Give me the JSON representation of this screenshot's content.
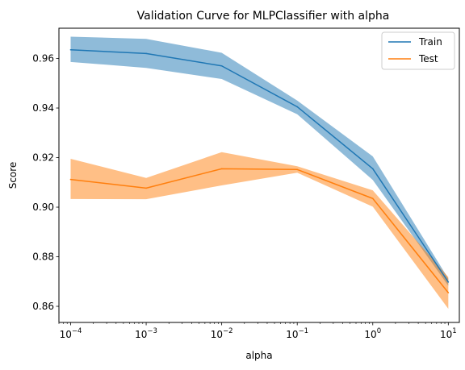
{
  "chart_data": {
    "type": "line",
    "title": "Validation Curve for MLPClassifier with alpha",
    "xlabel": "alpha",
    "ylabel": "Score",
    "xscale": "log",
    "xlim": [
      7e-05,
      14
    ],
    "ylim": [
      0.8535,
      0.9722
    ],
    "x": [
      0.0001,
      0.001,
      0.01,
      0.1,
      1,
      10
    ],
    "x_tick_labels": [
      {
        "base": "10",
        "exp": "−4"
      },
      {
        "base": "10",
        "exp": "−3"
      },
      {
        "base": "10",
        "exp": "−2"
      },
      {
        "base": "10",
        "exp": "−1"
      },
      {
        "base": "10",
        "exp": "0"
      },
      {
        "base": "10",
        "exp": "1"
      }
    ],
    "y_ticks": [
      0.86,
      0.88,
      0.9,
      0.92,
      0.94,
      0.96
    ],
    "y_tick_labels": [
      "0.86",
      "0.88",
      "0.90",
      "0.92",
      "0.94",
      "0.96"
    ],
    "grid": false,
    "legend_position": "top-right",
    "series": [
      {
        "name": "Train",
        "color": "#1f77b4",
        "fill_color": "#1f77b4",
        "values": [
          0.9635,
          0.962,
          0.957,
          0.9405,
          0.9155,
          0.8698
        ],
        "upper": [
          0.9688,
          0.9679,
          0.9623,
          0.943,
          0.9205,
          0.8712
        ],
        "lower": [
          0.9586,
          0.9562,
          0.9517,
          0.9375,
          0.911,
          0.8683
        ]
      },
      {
        "name": "Test",
        "color": "#ff7f0e",
        "fill_color": "#ff7f0e",
        "values": [
          0.9112,
          0.9077,
          0.9155,
          0.9152,
          0.9035,
          0.8655
        ],
        "upper": [
          0.9195,
          0.9118,
          0.9222,
          0.9165,
          0.9068,
          0.8718
        ],
        "lower": [
          0.9033,
          0.9032,
          0.9088,
          0.9139,
          0.9002,
          0.859
        ]
      }
    ]
  }
}
